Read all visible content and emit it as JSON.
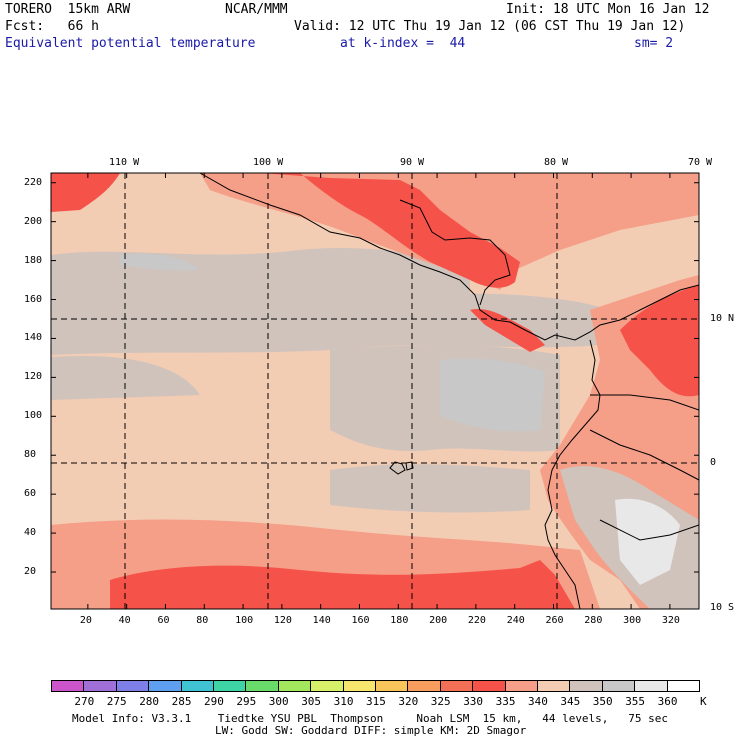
{
  "header": {
    "line1_left": "TORERO  15km ARW",
    "line1_center": "NCAR/MMM",
    "line1_right": "Init: 18 UTC Mon 16 Jan 12",
    "line2_left": "Fcst:   66 h",
    "line2_right": "Valid: 12 UTC Thu 19 Jan 12 (06 CST Thu 19 Jan 12)",
    "line3_field": "Equivalent potential temperature",
    "line3_level": "at k-index =  44",
    "line3_smooth": "sm= 2"
  },
  "map": {
    "lon_labels": [
      "110 W",
      "100 W",
      "90 W",
      "80 W",
      "70 W"
    ],
    "lat_labels": [
      "10 N",
      "0",
      "10 S"
    ],
    "y_ticks": [
      "220",
      "200",
      "180",
      "160",
      "140",
      "120",
      "100",
      "80",
      "60",
      "40",
      "20"
    ],
    "x_ticks": [
      "20",
      "40",
      "60",
      "80",
      "100",
      "120",
      "140",
      "160",
      "180",
      "200",
      "220",
      "240",
      "260",
      "280",
      "300",
      "320"
    ],
    "y_range": [
      1,
      225
    ],
    "x_range": [
      1,
      335
    ]
  },
  "colorbar": {
    "unit": "K",
    "labels": [
      "270",
      "275",
      "280",
      "285",
      "290",
      "295",
      "300",
      "305",
      "310",
      "315",
      "320",
      "325",
      "330",
      "335",
      "340",
      "345",
      "350",
      "355",
      "360"
    ],
    "colors": [
      "#cc55cc",
      "#a070d8",
      "#7f7fe8",
      "#5f9ff0",
      "#3fc3d3",
      "#3fd4a6",
      "#69db6a",
      "#a3e85c",
      "#d6f069",
      "#f7e66e",
      "#f7c55a",
      "#f79d5e",
      "#f37056",
      "#f5524a",
      "#f59e88",
      "#f3ccb4",
      "#d0c3bc",
      "#c8c8c8",
      "#e8e8e8",
      "#ffffff"
    ]
  },
  "footer": {
    "line1": "Model Info: V3.3.1    Tiedtke YSU PBL  Thompson     Noah LSM  15 km,   44 levels,   75 sec",
    "line2": "LW: Godd SW: Goddard DIFF: simple KM: 2D Smagor"
  }
}
